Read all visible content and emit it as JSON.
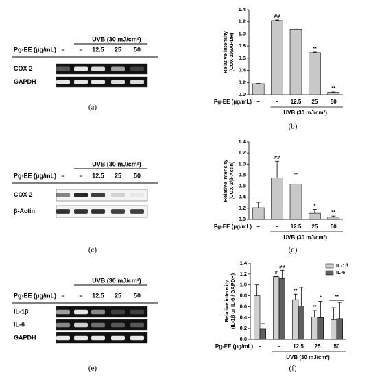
{
  "blots": [
    {
      "panel_label": "(a)",
      "treatment": "UVB (30 mJ/cm²)",
      "dose_label": "Pg-EE (μg/mL)",
      "doses": [
        "–",
        "–",
        "12.5",
        "25",
        "50"
      ],
      "rows": [
        "COX-2",
        "GAPDH"
      ]
    },
    {
      "panel_label": "(c)",
      "treatment": "UVB (30 mJ/cm²)",
      "dose_label": "Pg-EE (μg/mL)",
      "doses": [
        "–",
        "–",
        "12.5",
        "25",
        "50"
      ],
      "rows": [
        "COX-2",
        "β-Actin"
      ]
    },
    {
      "panel_label": "(e)",
      "treatment": "UVB (30 mJ/cm²)",
      "dose_label": "Pg-EE (μg/mL)",
      "doses": [
        "–",
        "–",
        "12.5",
        "25",
        "50"
      ],
      "rows": [
        "IL-1β",
        "IL-6",
        "GAPDH"
      ]
    }
  ],
  "chart_data": [
    {
      "type": "bar",
      "panel_label": "(b)",
      "ylabel": [
        "Relative intensity",
        "(COX-2/GAPDH)"
      ],
      "xlabel": "Pg-EE (μg/mL)",
      "group_label": "UVB (30 mJ/cm²)",
      "categories": [
        "–",
        "–",
        "12.5",
        "25",
        "50"
      ],
      "values": [
        0.18,
        1.22,
        1.07,
        0.69,
        0.04
      ],
      "errors": [
        0.005,
        0.01,
        0.01,
        0.01,
        0.005
      ],
      "significance": [
        null,
        "##",
        null,
        "**",
        "**"
      ],
      "color": "#c8c8c8",
      "ylim": [
        0,
        1.4
      ],
      "yticks": [
        {
          "value": 0,
          "label": "0.0"
        },
        0.2,
        0.4,
        0.6,
        0.8,
        {
          "value": 1,
          "label": "1.0"
        },
        1.2,
        1.4
      ]
    },
    {
      "type": "bar",
      "panel_label": "(d)",
      "ylabel": [
        "Relative intensity",
        "(COX-2/β-Actin)"
      ],
      "xlabel": "Pg-EE (μg/mL)",
      "group_label": "UVB (30 mJ/cm²)",
      "categories": [
        "–",
        "–",
        "12.5",
        "25",
        "50"
      ],
      "values": [
        0.21,
        0.75,
        0.64,
        0.11,
        0.04
      ],
      "errors": [
        0.1,
        0.3,
        0.18,
        0.07,
        0.02
      ],
      "significance": [
        null,
        "##",
        null,
        "*",
        "**"
      ],
      "color": "#c8c8c8",
      "ylim": [
        0,
        1.4
      ],
      "yticks": [
        {
          "value": 0,
          "label": "0.0"
        },
        0.2,
        0.4,
        0.6,
        0.8,
        {
          "value": 1,
          "label": "1.0"
        },
        1.2,
        1.4
      ]
    },
    {
      "type": "bar",
      "panel_label": "(f)",
      "ylabel": [
        "Relative intensity",
        "(IL-1β or IL-6 / GAPDH)"
      ],
      "xlabel": "Pg-EE (μg/mL)",
      "group_label": "UVB (30 mJ/cm²)",
      "categories": [
        "–",
        "–",
        "12.5",
        "25",
        "50"
      ],
      "series": [
        {
          "name": "IL-1β",
          "color": "#d0d0d0",
          "values": [
            0.8,
            1.15,
            0.73,
            0.41,
            0.36
          ],
          "errors": [
            0.2,
            0.01,
            0.1,
            0.12,
            0.22
          ],
          "significance": [
            null,
            "#",
            "**",
            "**",
            null
          ]
        },
        {
          "name": "IL-6",
          "color": "#606060",
          "values": [
            0.19,
            1.12,
            0.61,
            0.4,
            0.38
          ],
          "errors": [
            0.1,
            0.15,
            0.35,
            0.3,
            0.3
          ],
          "significance": [
            null,
            "##",
            null,
            "*",
            null
          ]
        }
      ],
      "group_significance": [
        null,
        null,
        null,
        null,
        "**"
      ],
      "legend": "upper right",
      "ylim": [
        0,
        1.4
      ],
      "yticks": [
        {
          "value": 0,
          "label": "0.0"
        },
        0.2,
        0.4,
        0.6,
        0.8,
        {
          "value": 1,
          "label": "1.0"
        },
        1.2,
        1.4
      ]
    }
  ]
}
